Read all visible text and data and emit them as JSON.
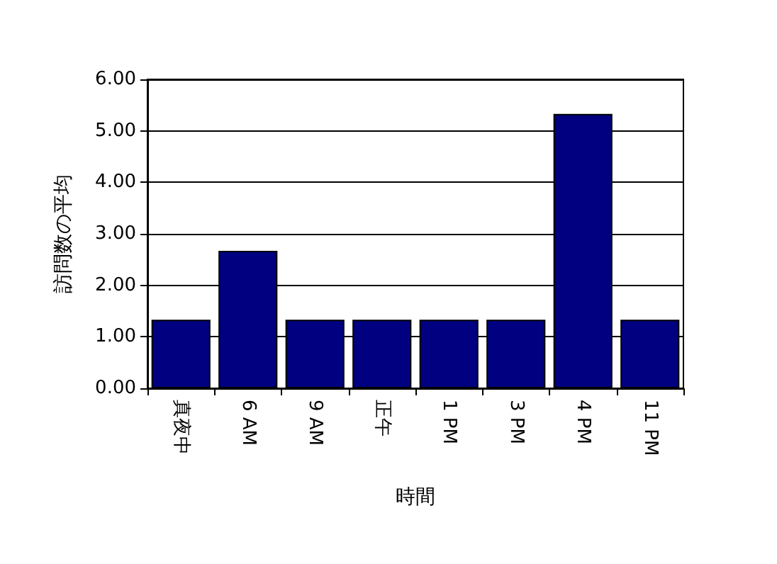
{
  "chart_data": {
    "type": "bar",
    "xlabel": "時間",
    "ylabel": "訪問数の平均",
    "categories": [
      "真夜中",
      "6 AM",
      "9 AM",
      "正午",
      "1 PM",
      "3 PM",
      "4 PM",
      "11 PM"
    ],
    "values": [
      1.33,
      2.67,
      1.33,
      1.33,
      1.33,
      1.33,
      5.33,
      1.33
    ],
    "color": "#000080",
    "ylim": [
      0,
      6
    ],
    "yticks": [
      {
        "value": 0,
        "label": "0.00"
      },
      {
        "value": 1,
        "label": "1.00"
      },
      {
        "value": 2,
        "label": "2.00"
      },
      {
        "value": 3,
        "label": "3.00"
      },
      {
        "value": 4,
        "label": "4.00"
      },
      {
        "value": 5,
        "label": "5.00"
      },
      {
        "value": 6,
        "label": "6.00"
      }
    ],
    "grid": "y"
  }
}
